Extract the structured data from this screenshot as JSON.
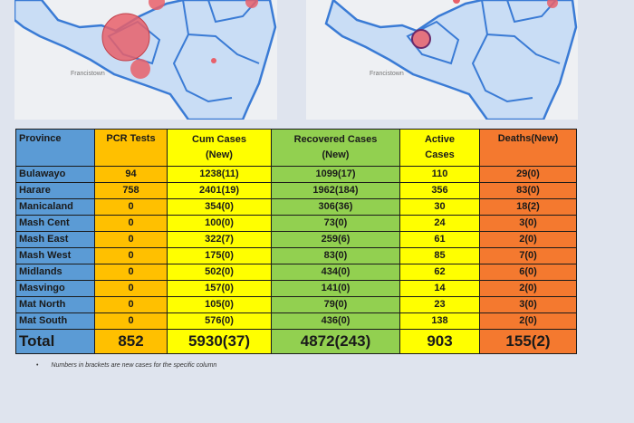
{
  "colors": {
    "province": "#5b9bd5",
    "pcr": "#ffc000",
    "cum": "#ffff00",
    "recovered": "#92d050",
    "active": "#ffff00",
    "deaths": "#f4792f",
    "map_border": "#3a7bd5",
    "map_fill": "#c9ddf5",
    "bubble": "#e8606a"
  },
  "maps": {
    "left_label": "Francistown",
    "right_label": "Francistown"
  },
  "table": {
    "headers": {
      "province": "Province",
      "pcr": "PCR Tests",
      "cum_1": "Cum Cases",
      "cum_2": "(New)",
      "rec_1": "Recovered Cases",
      "rec_2": "(New)",
      "act_1": "Active",
      "act_2": "Cases",
      "dth": "Deaths(New)"
    },
    "rows": [
      {
        "province": "Bulawayo",
        "pcr": "94",
        "cum": "1238(11)",
        "recovered": "1099(17)",
        "active": "110",
        "deaths": "29(0)"
      },
      {
        "province": "Harare",
        "pcr": "758",
        "cum": "2401(19)",
        "recovered": "1962(184)",
        "active": "356",
        "deaths": "83(0)"
      },
      {
        "province": "Manicaland",
        "pcr": "0",
        "cum": "354(0)",
        "recovered": "306(36)",
        "active": "30",
        "deaths": "18(2)"
      },
      {
        "province": "Mash Cent",
        "pcr": "0",
        "cum": "100(0)",
        "recovered": "73(0)",
        "active": "24",
        "deaths": "3(0)"
      },
      {
        "province": "Mash East",
        "pcr": "0",
        "cum": "322(7)",
        "recovered": "259(6)",
        "active": "61",
        "deaths": "2(0)"
      },
      {
        "province": "Mash West",
        "pcr": "0",
        "cum": "175(0)",
        "recovered": "83(0)",
        "active": "85",
        "deaths": "7(0)"
      },
      {
        "province": "Midlands",
        "pcr": "0",
        "cum": "502(0)",
        "recovered": "434(0)",
        "active": "62",
        "deaths": "6(0)"
      },
      {
        "province": "Masvingo",
        "pcr": "0",
        "cum": "157(0)",
        "recovered": "141(0)",
        "active": "14",
        "deaths": "2(0)"
      },
      {
        "province": "Mat North",
        "pcr": "0",
        "cum": "105(0)",
        "recovered": "79(0)",
        "active": "23",
        "deaths": "3(0)"
      },
      {
        "province": "Mat South",
        "pcr": "0",
        "cum": "576(0)",
        "recovered": "436(0)",
        "active": "138",
        "deaths": "2(0)"
      }
    ],
    "total": {
      "province": "Total",
      "pcr": "852",
      "cum": "5930(37)",
      "recovered": "4872(243)",
      "active": "903",
      "deaths": "155(2)"
    }
  },
  "footnote": "Numbers in brackets are new cases for the specific column"
}
